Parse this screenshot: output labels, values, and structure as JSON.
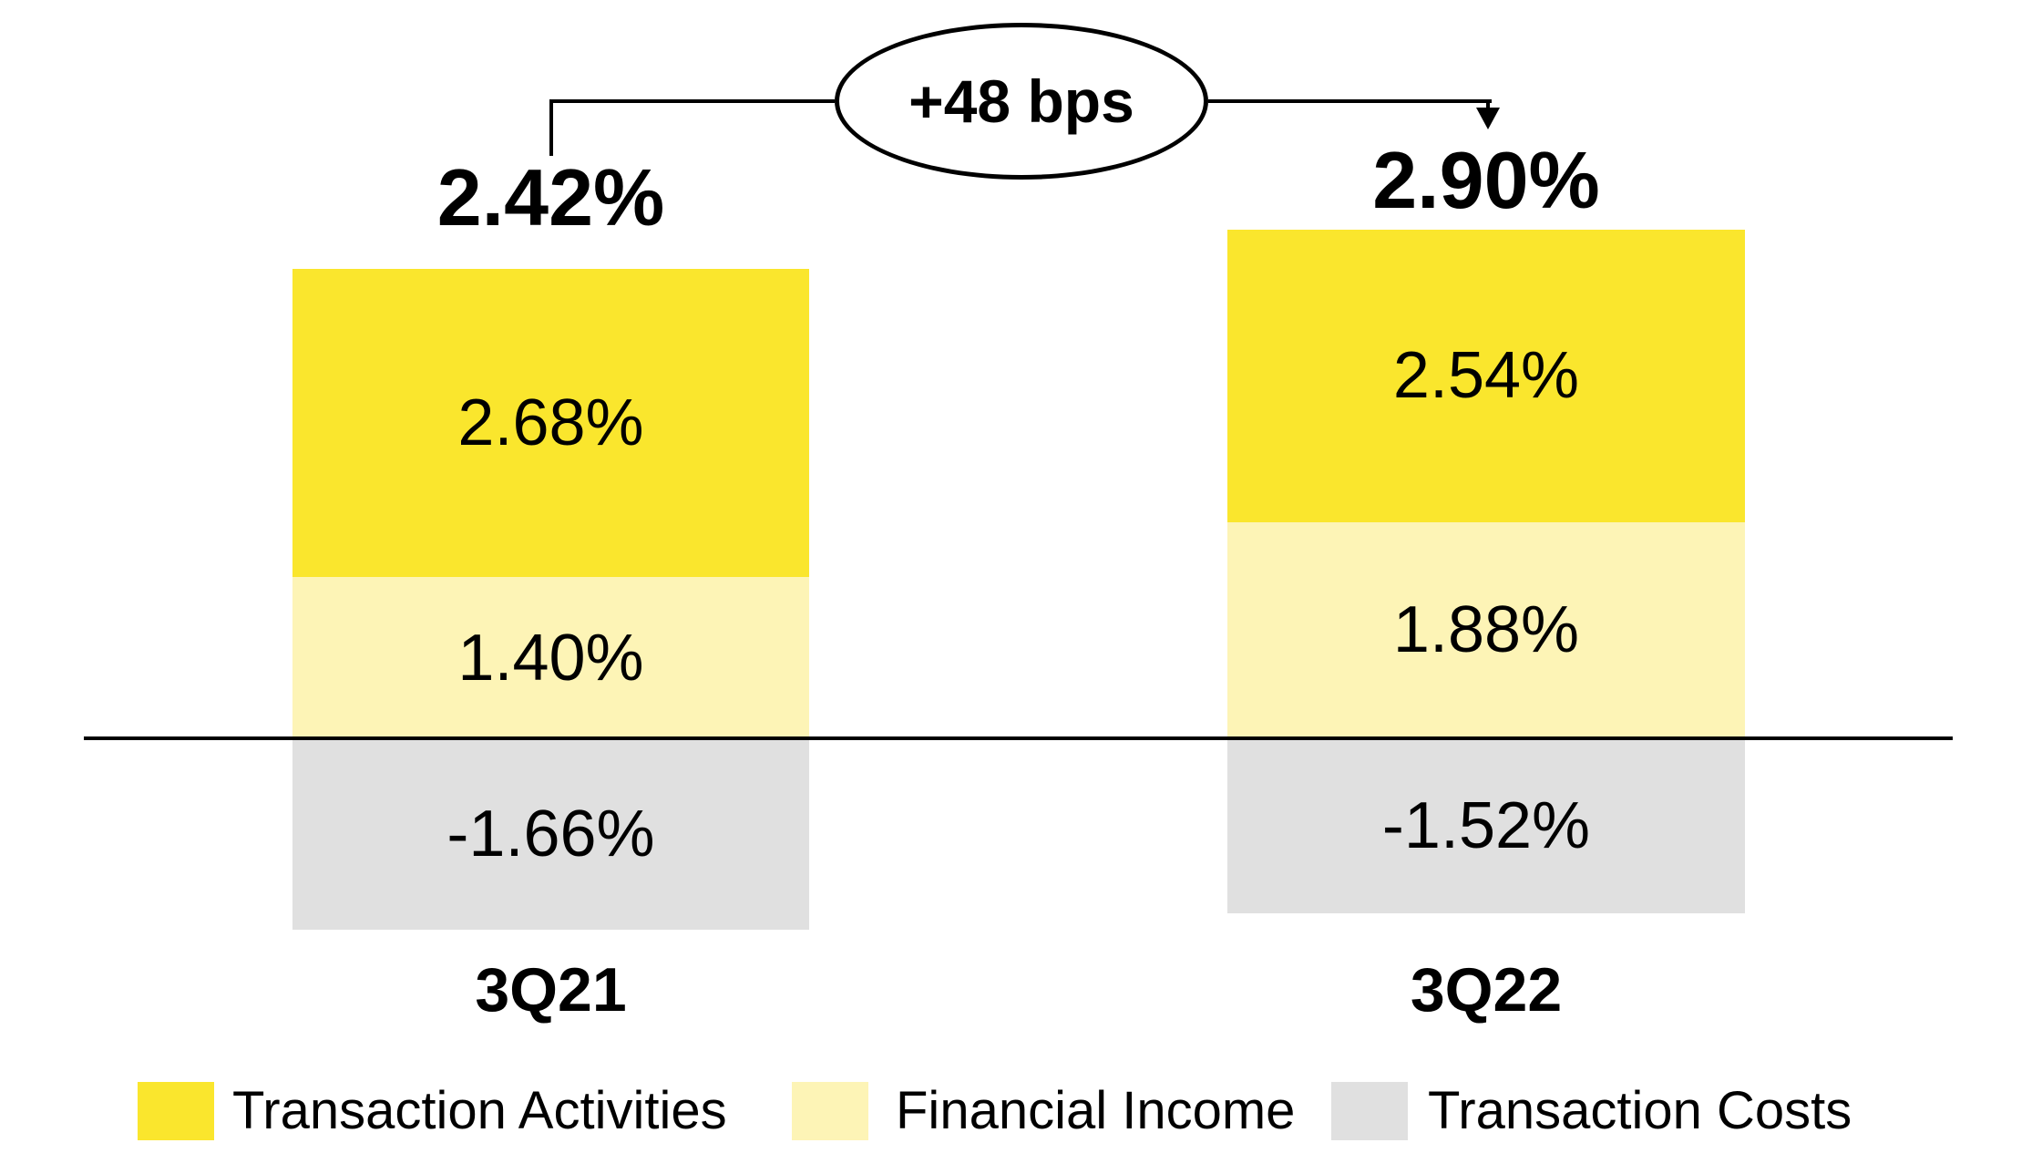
{
  "chart_data": {
    "type": "bar",
    "variant": "stacked-column",
    "categories": [
      "3Q21",
      "3Q22"
    ],
    "series": [
      {
        "name": "Transaction Activities",
        "color": "#FAE62D",
        "values": [
          2.68,
          2.54
        ],
        "labels": [
          "2.68%",
          "2.54%"
        ]
      },
      {
        "name": "Financial Income",
        "color": "#FDF4B6",
        "values": [
          1.4,
          1.88
        ],
        "labels": [
          "1.40%",
          "1.88%"
        ]
      },
      {
        "name": "Transaction Costs",
        "color": "#E0E0E0",
        "values": [
          -1.66,
          -1.52
        ],
        "labels": [
          "-1.66%",
          "-1.52%"
        ]
      }
    ],
    "totals": [
      {
        "label": "2.42%",
        "value": 2.42
      },
      {
        "label": "2.90%",
        "value": 2.9
      }
    ],
    "annotation": {
      "label": "+48 bps",
      "delta_bps": 48
    },
    "axis": {
      "zero_line": true,
      "gridlines": false
    },
    "legend_position": "bottom",
    "colors": {
      "text": "#000000",
      "line": "#000000",
      "background": "#ffffff"
    }
  }
}
